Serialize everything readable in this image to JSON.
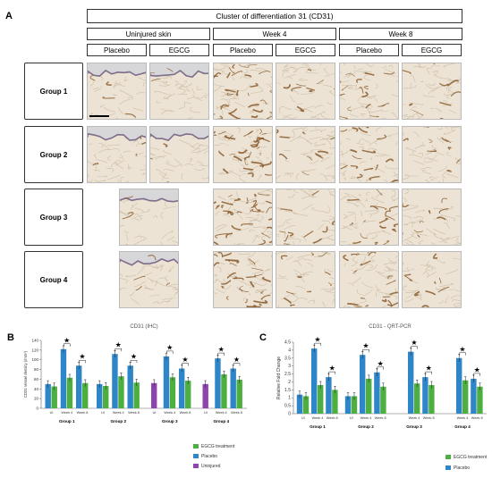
{
  "panelA": {
    "letter": "A",
    "header": "Cluster of differentiation 31 (CD31)",
    "conditions": [
      "Uninjured skin",
      "Week 4",
      "Week 8"
    ],
    "treatments": [
      "Placebo",
      "EGCG",
      "Placebo",
      "EGCG",
      "Placebo",
      "EGCG"
    ],
    "groups": [
      "Group 1",
      "Group 2",
      "Group 3",
      "Group 4"
    ]
  },
  "panelB": {
    "letter": "B",
    "title": "CD31 (IHC)",
    "legend": [
      "EGCG treatment",
      "Placebo",
      "Uninjured"
    ]
  },
  "panelC": {
    "letter": "C",
    "title": "CD31 - QRT-PCR",
    "legend": [
      "EGCG treatment",
      "Placebo"
    ]
  },
  "colors": {
    "egcg": "#4caf3f",
    "placebo": "#2e86c8",
    "uninjured": "#8e44ad",
    "tissue": "#e6dccb"
  },
  "chart_data": [
    {
      "type": "bar",
      "title": "CD31 (IHC)",
      "ylabel": "CD31 Vessel density (/mm²)",
      "ylim": [
        0,
        140
      ],
      "yticks": [
        0,
        20,
        40,
        60,
        80,
        100,
        120,
        140
      ],
      "groups": [
        "Group 1",
        "Group 2",
        "Group 3",
        "Group 4"
      ],
      "categories": [
        "UI",
        "Week 4",
        "Week 8"
      ],
      "bars": [
        {
          "group": 0,
          "cat": "UI",
          "colors": [
            "placebo",
            "egcg"
          ],
          "values": [
            50,
            45
          ]
        },
        {
          "group": 0,
          "cat": "Week 4",
          "colors": [
            "placebo",
            "egcg"
          ],
          "values": [
            122,
            63
          ]
        },
        {
          "group": 0,
          "cat": "Week 8",
          "colors": [
            "placebo",
            "egcg"
          ],
          "values": [
            88,
            52
          ]
        },
        {
          "group": 1,
          "cat": "UI",
          "colors": [
            "placebo",
            "egcg"
          ],
          "values": [
            50,
            46
          ]
        },
        {
          "group": 1,
          "cat": "Week 4",
          "colors": [
            "placebo",
            "egcg"
          ],
          "values": [
            112,
            66
          ]
        },
        {
          "group": 1,
          "cat": "Week 8",
          "colors": [
            "placebo",
            "egcg"
          ],
          "values": [
            88,
            53
          ]
        },
        {
          "group": 2,
          "cat": "UI",
          "colors": [
            "uninjured"
          ],
          "values": [
            52
          ]
        },
        {
          "group": 2,
          "cat": "Week 4",
          "colors": [
            "placebo",
            "egcg"
          ],
          "values": [
            107,
            64
          ]
        },
        {
          "group": 2,
          "cat": "Week 8",
          "colors": [
            "placebo",
            "egcg"
          ],
          "values": [
            82,
            57
          ]
        },
        {
          "group": 3,
          "cat": "UI",
          "colors": [
            "uninjured"
          ],
          "values": [
            50
          ]
        },
        {
          "group": 3,
          "cat": "Week 4",
          "colors": [
            "placebo",
            "egcg"
          ],
          "values": [
            103,
            70
          ]
        },
        {
          "group": 3,
          "cat": "Week 8",
          "colors": [
            "placebo",
            "egcg"
          ],
          "values": [
            82,
            59
          ]
        }
      ],
      "significance": "★",
      "legend_position": "bottom-right"
    },
    {
      "type": "bar",
      "title": "CD31 - QRT-PCR",
      "ylabel": "Relative Fold Change",
      "ylim": [
        0,
        4.5
      ],
      "yticks": [
        0,
        0.5,
        1,
        1.5,
        2,
        2.5,
        3,
        3.5,
        4,
        4.5
      ],
      "groups": [
        "Group 1",
        "Group 2",
        "Group 3",
        "Group 4"
      ],
      "categories": [
        "UI",
        "Week 4",
        "Week 8"
      ],
      "bars": [
        {
          "group": 0,
          "cat": "UI",
          "colors": [
            "placebo",
            "egcg"
          ],
          "values": [
            1.2,
            1.1
          ]
        },
        {
          "group": 0,
          "cat": "Week 4",
          "colors": [
            "placebo",
            "egcg"
          ],
          "values": [
            4.1,
            1.8
          ]
        },
        {
          "group": 0,
          "cat": "Week 8",
          "colors": [
            "placebo",
            "egcg"
          ],
          "values": [
            2.3,
            1.5
          ]
        },
        {
          "group": 1,
          "cat": "UI",
          "colors": [
            "placebo",
            "egcg"
          ],
          "values": [
            1.1,
            1.1
          ]
        },
        {
          "group": 1,
          "cat": "Week 4",
          "colors": [
            "placebo",
            "egcg"
          ],
          "values": [
            3.7,
            2.2
          ]
        },
        {
          "group": 1,
          "cat": "Week 8",
          "colors": [
            "placebo",
            "egcg"
          ],
          "values": [
            2.6,
            1.7
          ]
        },
        {
          "group": 2,
          "cat": "Week 4",
          "colors": [
            "placebo",
            "egcg"
          ],
          "values": [
            3.9,
            1.9
          ]
        },
        {
          "group": 2,
          "cat": "Week 8",
          "colors": [
            "placebo",
            "egcg"
          ],
          "values": [
            2.3,
            1.8
          ]
        },
        {
          "group": 3,
          "cat": "Week 4",
          "colors": [
            "placebo",
            "egcg"
          ],
          "values": [
            3.5,
            2.1
          ]
        },
        {
          "group": 3,
          "cat": "Week 8",
          "colors": [
            "placebo",
            "egcg"
          ],
          "values": [
            2.2,
            1.7
          ]
        }
      ],
      "significance": "★",
      "legend_position": "bottom-right"
    }
  ]
}
